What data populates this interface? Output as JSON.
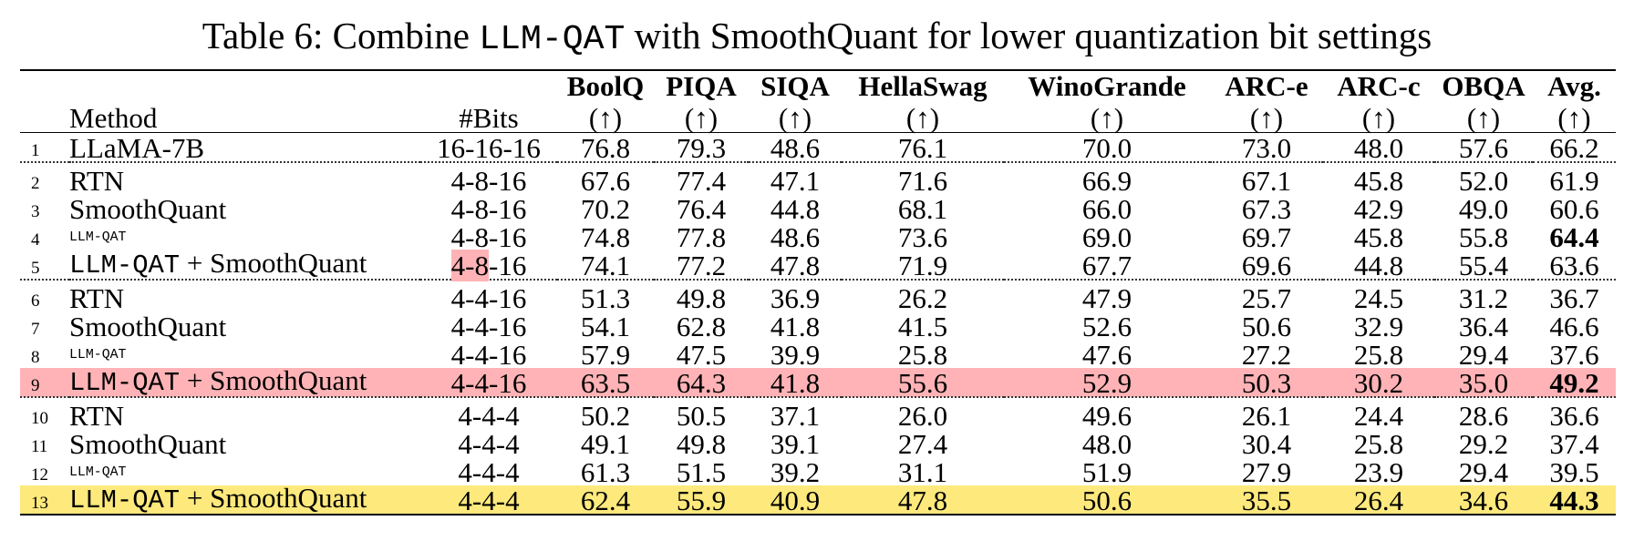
{
  "caption": {
    "prefix": "Table 6: Combine ",
    "code": "LLM-QAT",
    "suffix": " with SmoothQuant for lower quantization bit settings"
  },
  "header": {
    "method": "Method",
    "bits": "#Bits",
    "metrics": [
      "BoolQ",
      "PIQA",
      "SIQA",
      "HellaSwag",
      "WinoGrande",
      "ARC-e",
      "ARC-c",
      "OBQA",
      "Avg."
    ],
    "arrow": "(↑)"
  },
  "highlight_colors": {
    "red": "#ffb3b6",
    "yellow": "#fde97c"
  },
  "rows": [
    {
      "idx": "1",
      "method": "LLaMA-7B",
      "mono": false,
      "bits": "16-16-16",
      "values": [
        "76.8",
        "79.3",
        "48.6",
        "76.1",
        "70.0",
        "73.0",
        "48.0",
        "57.6",
        "66.2"
      ]
    },
    {
      "idx": "2",
      "method": "RTN",
      "mono": false,
      "bits": "4-8-16",
      "values": [
        "67.6",
        "77.4",
        "47.1",
        "71.6",
        "66.9",
        "67.1",
        "45.8",
        "52.0",
        "61.9"
      ]
    },
    {
      "idx": "3",
      "method": "SmoothQuant",
      "mono": false,
      "bits": "4-8-16",
      "values": [
        "70.2",
        "76.4",
        "44.8",
        "68.1",
        "66.0",
        "67.3",
        "42.9",
        "49.0",
        "60.6"
      ]
    },
    {
      "idx": "4",
      "method": "LLM-QAT",
      "mono": true,
      "bits": "4-8-16",
      "values": [
        "74.8",
        "77.8",
        "48.6",
        "73.6",
        "69.0",
        "69.7",
        "45.8",
        "55.8",
        "64.4"
      ]
    },
    {
      "idx": "5",
      "method_code": "LLM-QAT",
      "method_rest": " + SmoothQuant",
      "bits_hl": "4-8",
      "bits_rest": "-16",
      "values": [
        "74.1",
        "77.2",
        "47.8",
        "71.9",
        "67.7",
        "69.6",
        "44.8",
        "55.4",
        "63.6"
      ]
    },
    {
      "idx": "6",
      "method": "RTN",
      "mono": false,
      "bits": "4-4-16",
      "values": [
        "51.3",
        "49.8",
        "36.9",
        "26.2",
        "47.9",
        "25.7",
        "24.5",
        "31.2",
        "36.7"
      ]
    },
    {
      "idx": "7",
      "method": "SmoothQuant",
      "mono": false,
      "bits": "4-4-16",
      "values": [
        "54.1",
        "62.8",
        "41.8",
        "41.5",
        "52.6",
        "50.6",
        "32.9",
        "36.4",
        "46.6"
      ]
    },
    {
      "idx": "8",
      "method": "LLM-QAT",
      "mono": true,
      "bits": "4-4-16",
      "values": [
        "57.9",
        "47.5",
        "39.9",
        "25.8",
        "47.6",
        "27.2",
        "25.8",
        "29.4",
        "37.6"
      ]
    },
    {
      "idx": "9",
      "method_code": "LLM-QAT",
      "method_rest": " + SmoothQuant",
      "bits": "4-4-16",
      "values": [
        "63.5",
        "64.3",
        "41.8",
        "55.6",
        "52.9",
        "50.3",
        "30.2",
        "35.0",
        "49.2"
      ]
    },
    {
      "idx": "10",
      "method": "RTN",
      "mono": false,
      "bits": "4-4-4",
      "values": [
        "50.2",
        "50.5",
        "37.1",
        "26.0",
        "49.6",
        "26.1",
        "24.4",
        "28.6",
        "36.6"
      ]
    },
    {
      "idx": "11",
      "method": "SmoothQuant",
      "mono": false,
      "bits": "4-4-4",
      "values": [
        "49.1",
        "49.8",
        "39.1",
        "27.4",
        "48.0",
        "30.4",
        "25.8",
        "29.2",
        "37.4"
      ]
    },
    {
      "idx": "12",
      "method": "LLM-QAT",
      "mono": true,
      "bits": "4-4-4",
      "values": [
        "61.3",
        "51.5",
        "39.2",
        "31.1",
        "51.9",
        "27.9",
        "23.9",
        "29.4",
        "39.5"
      ]
    },
    {
      "idx": "13",
      "method_code": "LLM-QAT",
      "method_rest": " + SmoothQuant",
      "bits": "4-4-4",
      "values": [
        "62.4",
        "55.9",
        "40.9",
        "47.8",
        "50.6",
        "35.5",
        "26.4",
        "34.6",
        "44.3"
      ]
    }
  ]
}
